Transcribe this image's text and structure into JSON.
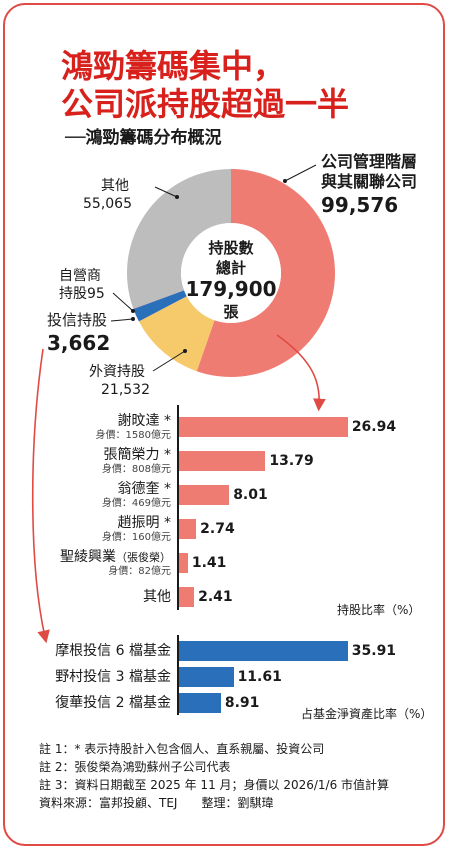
{
  "title": {
    "line1": "鴻勁籌碼集中，",
    "line2": "公司派持股超過一半",
    "subtitle": "──鴻勁籌碼分布概況"
  },
  "colors": {
    "title": "#d8211c",
    "company": "#ef7c72",
    "foreign": "#f6c96a",
    "trust": "#2a6fba",
    "dealer": "#3a3a8c",
    "others": "#bdbdbd",
    "bar_red": "#ef7c72",
    "bar_blue": "#2a6fba"
  },
  "chart_data": [
    {
      "type": "pie",
      "center_label": {
        "line1": "持股數",
        "line2": "總計",
        "line3": "179,900",
        "line4": "張"
      },
      "slices": [
        {
          "name": "公司管理階層與其關聯公司",
          "label_line1": "公司管理階層",
          "label_line2": "與其關聯公司",
          "value": 99576,
          "value_text": "99,576",
          "color": "#ef7c72"
        },
        {
          "name": "外資持股",
          "label_line1": "外資持股",
          "value": 21532,
          "value_text": "21,532",
          "color": "#f6c96a"
        },
        {
          "name": "投信持股",
          "label_line1": "投信持股",
          "value": 3662,
          "value_text": "3,662",
          "color": "#2a6fba"
        },
        {
          "name": "自營商持股",
          "label_line1": "自營商",
          "label_line2": "持股",
          "value": 95,
          "value_text": "95",
          "color": "#3a3a8c"
        },
        {
          "name": "其他",
          "label_line1": "其他",
          "value": 55065,
          "value_text": "55,065",
          "color": "#bdbdbd"
        }
      ]
    },
    {
      "type": "bar",
      "orientation": "horizontal",
      "xlabel": "持股比率（%）",
      "xlim": [
        0,
        30
      ],
      "categories": [
        {
          "label": "謝旼達 *",
          "worth": "身價：1580億元"
        },
        {
          "label": "張簡榮力 *",
          "worth": "身價：808億元"
        },
        {
          "label": "翁德奎 *",
          "worth": "身價：469億元"
        },
        {
          "label": "趙振明 *",
          "worth": "身價：160億元"
        },
        {
          "label": "聖綾興業",
          "sub": "（張俊榮）",
          "worth": "身價：82億元"
        },
        {
          "label": "其他",
          "worth": ""
        }
      ],
      "values": [
        26.94,
        13.79,
        8.01,
        2.74,
        1.41,
        2.41
      ],
      "value_labels": [
        "26.94",
        "13.79",
        "8.01",
        "2.74",
        "1.41",
        "2.41"
      ],
      "color": "#ef7c72"
    },
    {
      "type": "bar",
      "orientation": "horizontal",
      "xlabel": "占基金淨資產比率（%）",
      "xlim": [
        0,
        40
      ],
      "categories": [
        "摩根投信 6 檔基金",
        "野村投信 3 檔基金",
        "復華投信 2 檔基金"
      ],
      "values": [
        35.91,
        11.61,
        8.91
      ],
      "value_labels": [
        "35.91",
        "11.61",
        "8.91"
      ],
      "color": "#2a6fba"
    }
  ],
  "notes": [
    "註 1：* 表示持股計入包含個人、直系親屬、投資公司",
    "註 2：張俊榮為鴻勁蘇州子公司代表",
    "註 3：資料日期截至 2025 年 11 月；身價以 2026/1/6 市值計算",
    "資料來源：富邦投顧、TEJ　　整理：劉騏瑋"
  ]
}
